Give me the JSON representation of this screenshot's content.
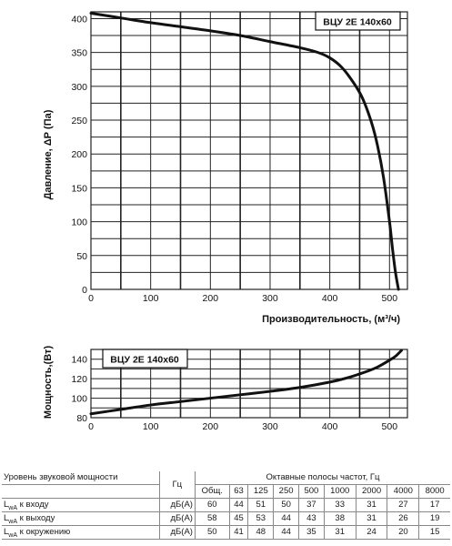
{
  "chart_data": [
    {
      "type": "line",
      "title": "ВЦУ 2Е 140х60",
      "xlabel": "Производительность, (м³/ч)",
      "ylabel": "Давление, ΔР (Па)",
      "xlim": [
        0,
        530
      ],
      "ylim": [
        0,
        410
      ],
      "x_ticks": [
        0,
        100,
        200,
        300,
        400,
        500
      ],
      "y_ticks": [
        0,
        50,
        100,
        150,
        200,
        250,
        300,
        350,
        400
      ],
      "grid": true,
      "series": [
        {
          "x": [
            0,
            50,
            100,
            150,
            200,
            250,
            300,
            350,
            380,
            400,
            420,
            440,
            455,
            470,
            480,
            490,
            500,
            505,
            510,
            515
          ],
          "y": [
            408,
            401,
            394,
            388,
            382,
            375,
            366,
            357,
            350,
            342,
            328,
            305,
            282,
            246,
            212,
            165,
            100,
            60,
            25,
            0
          ]
        }
      ]
    },
    {
      "type": "line",
      "title": "ВЦУ 2Е 140х60",
      "xlabel": "",
      "ylabel": "Мощность,(Вт)",
      "xlim": [
        0,
        530
      ],
      "ylim": [
        80,
        150
      ],
      "x_ticks": [
        0,
        100,
        200,
        300,
        400,
        500
      ],
      "y_ticks": [
        80,
        100,
        120,
        140
      ],
      "grid": true,
      "series": [
        {
          "x": [
            0,
            50,
            100,
            150,
            200,
            250,
            300,
            350,
            400,
            430,
            460,
            480,
            500,
            510,
            520
          ],
          "y": [
            84,
            88.5,
            93,
            96.5,
            100,
            103.5,
            107,
            111,
            116.5,
            121,
            127,
            132,
            139,
            143,
            149
          ]
        }
      ]
    }
  ],
  "table": {
    "title": "Уровень звуковой мощности",
    "unit_header": "Гц",
    "octave_header": "Октавные полосы частот, Гц",
    "columns": [
      "Общ.",
      "63",
      "125",
      "250",
      "500",
      "1000",
      "2000",
      "4000",
      "8000"
    ],
    "rows": [
      {
        "label": "к входу",
        "unit": "дБ(А)",
        "values": [
          "60",
          "44",
          "51",
          "50",
          "37",
          "33",
          "31",
          "27",
          "17"
        ]
      },
      {
        "label": "к выходу",
        "unit": "дБ(А)",
        "values": [
          "58",
          "45",
          "53",
          "44",
          "43",
          "38",
          "31",
          "26",
          "19"
        ]
      },
      {
        "label": "к окружению",
        "unit": "дБ(А)",
        "values": [
          "50",
          "41",
          "48",
          "44",
          "35",
          "31",
          "24",
          "20",
          "15"
        ]
      }
    ],
    "lwa_main": "L",
    "lwa_sub": "wA"
  }
}
